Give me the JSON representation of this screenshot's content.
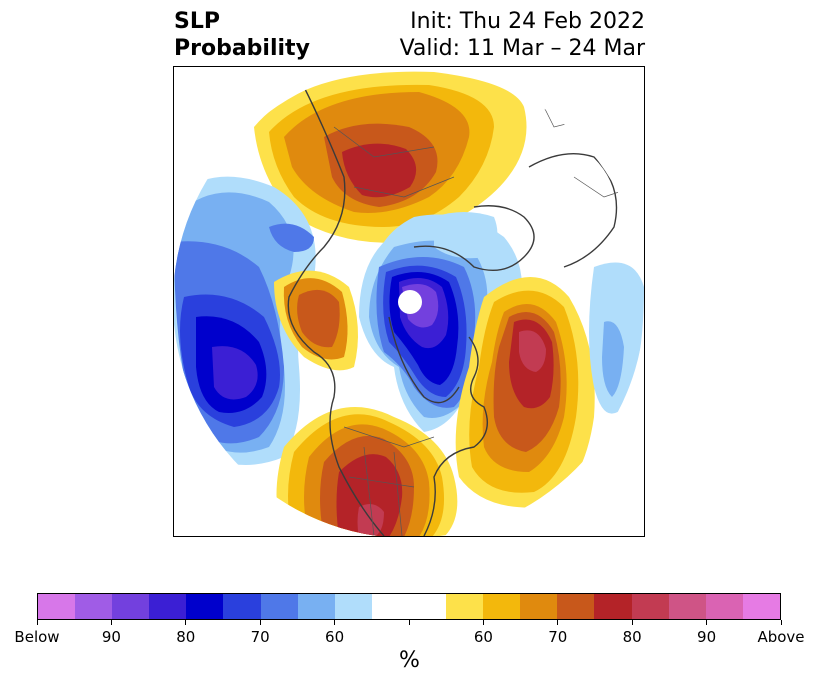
{
  "title": {
    "left_line1": "SLP",
    "left_line2": "Probability",
    "right_line1": "Init: Thu 24 Feb 2022",
    "right_line2": "Valid: 11 Mar – 24 Mar"
  },
  "colorbar": {
    "colors": [
      "#d777e9",
      "#a05ce6",
      "#7340de",
      "#3b1fd4",
      "#0000cc",
      "#2a40dd",
      "#4f78e8",
      "#78b0f2",
      "#b0ddfb",
      "#ffffff",
      "#ffffff",
      "#fde14a",
      "#f3b80c",
      "#e08a0e",
      "#c8581b",
      "#b42328",
      "#c23b52",
      "#cf5486",
      "#da63b3",
      "#e67be4"
    ],
    "tick_labels": [
      "Below",
      "90",
      "80",
      "70",
      "60",
      "",
      "60",
      "70",
      "80",
      "90",
      "Above"
    ],
    "units": "%"
  },
  "map": {
    "projection": "north polar stereographic",
    "variable": "sea level pressure tercile probability",
    "regions": [
      {
        "name": "north-pacific-below",
        "category": "below",
        "max_probability": 85
      },
      {
        "name": "arctic-below",
        "category": "below",
        "max_probability": 85
      },
      {
        "name": "siberia-above",
        "category": "above",
        "max_probability": 75
      },
      {
        "name": "north-atlantic-above",
        "category": "above",
        "max_probability": 85
      },
      {
        "name": "united-states-above",
        "category": "above",
        "max_probability": 85
      },
      {
        "name": "alaska-above",
        "category": "above",
        "max_probability": 75
      }
    ]
  }
}
